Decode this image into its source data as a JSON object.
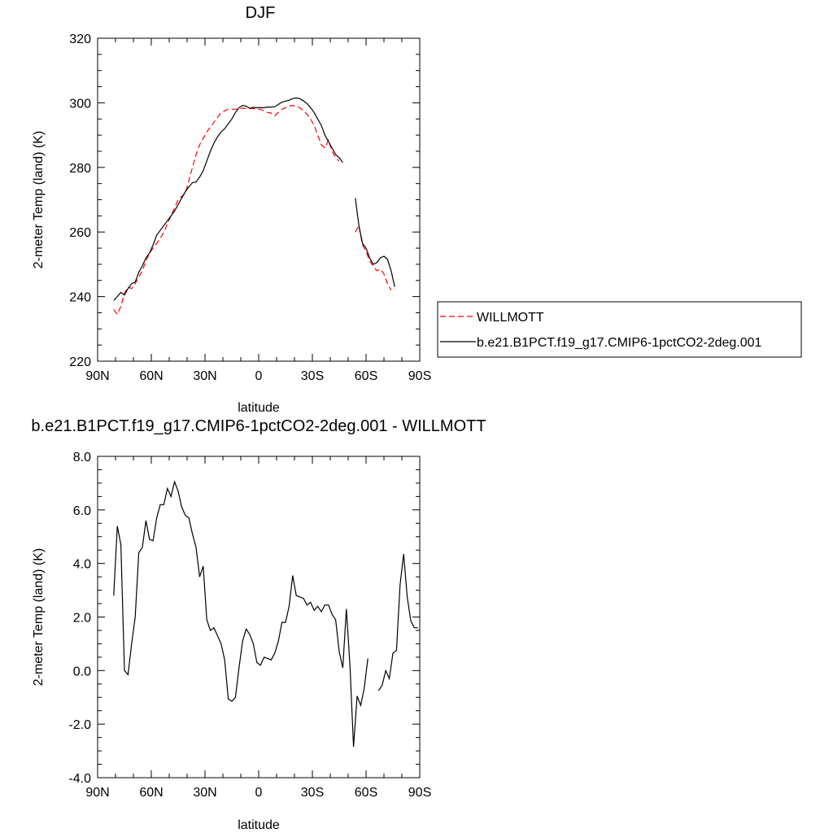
{
  "chart_data": [
    {
      "type": "line",
      "title": "DJF",
      "xlabel": "latitude",
      "ylabel": "2-meter Temp (land) (K)",
      "xlim": [
        -90,
        90
      ],
      "ylim": [
        220,
        320
      ],
      "xticks": [
        -90,
        -60,
        -30,
        0,
        30,
        60,
        90
      ],
      "xticklabels": [
        "90N",
        "60N",
        "30N",
        "0",
        "30S",
        "60S",
        "90S"
      ],
      "yticks": [
        220,
        240,
        260,
        280,
        300,
        320
      ],
      "yticklabels": [
        "220",
        "240",
        "260",
        "280",
        "300",
        "320"
      ],
      "legend_position": "right",
      "series": [
        {
          "name": "WILLMOTT",
          "color": "#ff0000",
          "style": "dashed",
          "segments": [
            [
              [
                -81,
                236
              ],
              [
                -79,
                234.5
              ],
              [
                -77,
                237
              ],
              [
                -75,
                241
              ],
              [
                -73,
                243
              ],
              [
                -71,
                242.5
              ],
              [
                -69,
                244
              ],
              [
                -67,
                246
              ],
              [
                -65,
                248
              ],
              [
                -63,
                251
              ],
              [
                -61,
                253.5
              ],
              [
                -59,
                255
              ],
              [
                -57,
                256.5
              ],
              [
                -55,
                258
              ],
              [
                -53,
                260
              ],
              [
                -51,
                262.5
              ],
              [
                -49,
                265
              ],
              [
                -47,
                267.5
              ],
              [
                -45,
                270
              ],
              [
                -43,
                271
              ],
              [
                -41,
                272
              ],
              [
                -39,
                276
              ],
              [
                -37,
                280
              ],
              [
                -35,
                284
              ],
              [
                -33,
                287
              ],
              [
                -31,
                289
              ],
              [
                -29,
                291
              ],
              [
                -27,
                292.5
              ],
              [
                -25,
                294
              ],
              [
                -23,
                295.5
              ],
              [
                -21,
                297
              ],
              [
                -19,
                297.5
              ],
              [
                -17,
                298
              ],
              [
                -15,
                298
              ],
              [
                -13,
                298
              ],
              [
                -11,
                298.2
              ],
              [
                -9,
                298.3
              ],
              [
                -7,
                298.3
              ],
              [
                -5,
                298.2
              ],
              [
                -3,
                298.2
              ],
              [
                -1,
                298
              ],
              [
                1,
                298
              ],
              [
                3,
                297.5
              ],
              [
                5,
                297
              ],
              [
                7,
                296.8
              ],
              [
                9,
                296
              ],
              [
                11,
                297
              ],
              [
                13,
                298
              ],
              [
                15,
                298.5
              ],
              [
                17,
                299
              ],
              [
                19,
                299.2
              ],
              [
                21,
                299
              ],
              [
                23,
                298.5
              ],
              [
                25,
                297.5
              ],
              [
                27,
                296.5
              ],
              [
                29,
                295
              ],
              [
                31,
                293
              ],
              [
                33,
                290
              ],
              [
                35,
                287
              ],
              [
                37,
                286
              ],
              [
                39,
                288.5
              ],
              [
                41,
                285
              ],
              [
                43,
                283
              ],
              [
                45,
                282
              ]
            ],
            [
              [
                54,
                260
              ],
              [
                56,
                262
              ],
              [
                58,
                256
              ],
              [
                60,
                254
              ],
              [
                62,
                251
              ],
              [
                64,
                249.5
              ],
              [
                66,
                248
              ],
              [
                68,
                248.5
              ],
              [
                70,
                247
              ],
              [
                72,
                244
              ],
              [
                74,
                242
              ]
            ]
          ]
        },
        {
          "name": "b.e21.B1PCT.f19_g17.CMIP6-1pctCO2-2deg.001",
          "color": "#000000",
          "style": "solid",
          "segments": [
            [
              [
                -81,
                238.8
              ],
              [
                -79,
                240
              ],
              [
                -77,
                241.3
              ],
              [
                -75,
                240.5
              ],
              [
                -73,
                242.5
              ],
              [
                -71,
                244
              ],
              [
                -69,
                244.5
              ],
              [
                -67,
                247.5
              ],
              [
                -65,
                249.5
              ],
              [
                -63,
                252
              ],
              [
                -61,
                253.5
              ],
              [
                -59,
                256
              ],
              [
                -57,
                259
              ],
              [
                -55,
                260.5
              ],
              [
                -53,
                262
              ],
              [
                -51,
                263.5
              ],
              [
                -49,
                265
              ],
              [
                -47,
                266.5
              ],
              [
                -45,
                268.5
              ],
              [
                -43,
                270.5
              ],
              [
                -41,
                272.5
              ],
              [
                -39,
                274
              ],
              [
                -37,
                275.3
              ],
              [
                -35,
                275.5
              ],
              [
                -33,
                277
              ],
              [
                -31,
                279
              ],
              [
                -29,
                282
              ],
              [
                -27,
                285
              ],
              [
                -25,
                287.5
              ],
              [
                -23,
                289.5
              ],
              [
                -21,
                291
              ],
              [
                -19,
                292
              ],
              [
                -17,
                293.5
              ],
              [
                -15,
                295
              ],
              [
                -13,
                297
              ],
              [
                -11,
                298.5
              ],
              [
                -9,
                299.2
              ],
              [
                -7,
                299
              ],
              [
                -5,
                298.3
              ],
              [
                -3,
                298.6
              ],
              [
                -1,
                298.5
              ],
              [
                1,
                298.5
              ],
              [
                3,
                298.5
              ],
              [
                5,
                298.7
              ],
              [
                7,
                298.7
              ],
              [
                9,
                298.8
              ],
              [
                11,
                299.5
              ],
              [
                13,
                300.2
              ],
              [
                15,
                300.5
              ],
              [
                17,
                300.8
              ],
              [
                19,
                301.3
              ],
              [
                21,
                301.5
              ],
              [
                23,
                301.3
              ],
              [
                25,
                300.6
              ],
              [
                27,
                299.8
              ],
              [
                29,
                298.5
              ],
              [
                31,
                297
              ],
              [
                33,
                295
              ],
              [
                35,
                293
              ],
              [
                37,
                290
              ],
              [
                39,
                288
              ],
              [
                41,
                286
              ],
              [
                43,
                284
              ],
              [
                45,
                283
              ],
              [
                47,
                281.5
              ]
            ],
            [
              [
                54,
                270.5
              ],
              [
                56,
                262
              ],
              [
                58,
                256.5
              ],
              [
                60,
                255
              ],
              [
                62,
                252
              ],
              [
                64,
                250
              ],
              [
                66,
                250.5
              ],
              [
                68,
                252
              ],
              [
                70,
                252.5
              ],
              [
                72,
                251.5
              ],
              [
                74,
                248
              ],
              [
                76,
                243
              ]
            ]
          ]
        }
      ]
    },
    {
      "type": "line",
      "title": "b.e21.B1PCT.f19_g17.CMIP6-1pctCO2-2deg.001 - WILLMOTT",
      "xlabel": "latitude",
      "ylabel": "2-meter Temp (land) (K)",
      "xlim": [
        -90,
        90
      ],
      "ylim": [
        -4,
        8
      ],
      "xticks": [
        -90,
        -60,
        -30,
        0,
        30,
        60,
        90
      ],
      "xticklabels": [
        "90N",
        "60N",
        "30N",
        "0",
        "30S",
        "60S",
        "90S"
      ],
      "yticks": [
        -4,
        -2,
        0,
        2,
        4,
        6,
        8
      ],
      "yticklabels": [
        "-4.0",
        "-2.0",
        "0.0",
        "2.0",
        "4.0",
        "6.0",
        "8.0"
      ],
      "series": [
        {
          "color": "#000000",
          "style": "solid",
          "segments": [
            [
              [
                -81,
                2.8
              ],
              [
                -79,
                5.4
              ],
              [
                -77,
                4.7
              ],
              [
                -75,
                0.0
              ],
              [
                -73,
                -0.15
              ],
              [
                -71,
                1.0
              ],
              [
                -69,
                2.0
              ],
              [
                -67,
                4.4
              ],
              [
                -65,
                4.6
              ],
              [
                -63,
                5.6
              ],
              [
                -61,
                4.9
              ],
              [
                -59,
                4.85
              ],
              [
                -57,
                5.7
              ],
              [
                -55,
                6.2
              ],
              [
                -53,
                6.2
              ],
              [
                -51,
                6.8
              ],
              [
                -49,
                6.5
              ],
              [
                -47,
                7.05
              ],
              [
                -45,
                6.7
              ],
              [
                -43,
                6.1
              ],
              [
                -41,
                5.8
              ],
              [
                -39,
                5.7
              ],
              [
                -37,
                5.1
              ],
              [
                -35,
                4.6
              ],
              [
                -33,
                3.5
              ],
              [
                -31,
                3.9
              ],
              [
                -29,
                1.9
              ],
              [
                -27,
                1.5
              ],
              [
                -25,
                1.6
              ],
              [
                -23,
                1.3
              ],
              [
                -21,
                1.0
              ],
              [
                -19,
                0.4
              ],
              [
                -17,
                -1.05
              ],
              [
                -15,
                -1.15
              ],
              [
                -13,
                -1.0
              ],
              [
                -11,
                0.1
              ],
              [
                -9,
                1.1
              ],
              [
                -7,
                1.55
              ],
              [
                -5,
                1.35
              ],
              [
                -3,
                1.0
              ],
              [
                -1,
                0.3
              ],
              [
                1,
                0.2
              ],
              [
                3,
                0.5
              ],
              [
                5,
                0.45
              ],
              [
                7,
                0.4
              ],
              [
                9,
                0.65
              ],
              [
                11,
                1.1
              ],
              [
                13,
                1.8
              ],
              [
                15,
                1.8
              ],
              [
                17,
                2.4
              ],
              [
                19,
                3.55
              ],
              [
                21,
                2.8
              ],
              [
                23,
                2.75
              ],
              [
                25,
                2.7
              ],
              [
                27,
                2.45
              ],
              [
                29,
                2.55
              ],
              [
                31,
                2.25
              ],
              [
                33,
                2.4
              ],
              [
                35,
                2.2
              ],
              [
                37,
                2.45
              ],
              [
                39,
                2.45
              ],
              [
                41,
                2.1
              ],
              [
                43,
                1.9
              ],
              [
                45,
                0.7
              ],
              [
                47,
                0.1
              ],
              [
                49,
                2.3
              ],
              [
                51,
                0.2
              ],
              [
                53,
                -2.85
              ],
              [
                55,
                -0.95
              ],
              [
                57,
                -1.3
              ],
              [
                59,
                -0.65
              ],
              [
                61,
                0.45
              ]
            ],
            [
              [
                67,
                -0.75
              ],
              [
                69,
                -0.55
              ],
              [
                71,
                0.0
              ],
              [
                73,
                -0.3
              ],
              [
                75,
                0.65
              ],
              [
                77,
                0.75
              ],
              [
                79,
                3.2
              ],
              [
                81,
                4.35
              ],
              [
                83,
                2.75
              ],
              [
                85,
                1.85
              ],
              [
                87,
                1.6
              ],
              [
                89,
                1.6
              ]
            ]
          ]
        }
      ]
    }
  ]
}
